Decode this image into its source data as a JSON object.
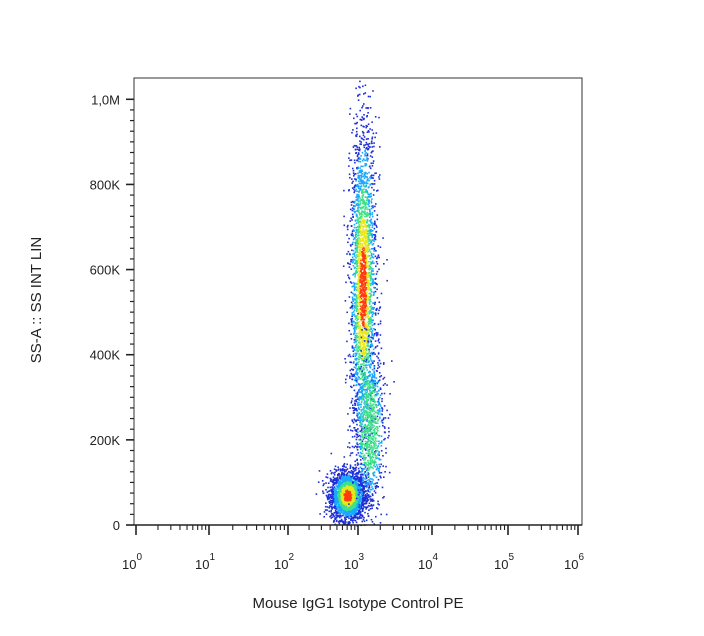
{
  "chart_data": {
    "type": "scatter",
    "subtype": "flow-cytometry density dot plot (pseudocolor)",
    "xlabel": "Mouse IgG1 Isotype Control PE",
    "ylabel": "SS-A :: SS INT LIN",
    "x_scale": "log (biexponential near zero)",
    "y_scale": "linear",
    "x_ticks": [
      {
        "base": "10",
        "exp": "0",
        "value": 1
      },
      {
        "base": "10",
        "exp": "1",
        "value": 10
      },
      {
        "base": "10",
        "exp": "2",
        "value": 100
      },
      {
        "base": "10",
        "exp": "3",
        "value": 1000
      },
      {
        "base": "10",
        "exp": "4",
        "value": 10000
      },
      {
        "base": "10",
        "exp": "5",
        "value": 100000
      },
      {
        "base": "10",
        "exp": "6",
        "value": 1000000
      }
    ],
    "y_ticks": [
      {
        "label": "0",
        "value": 0
      },
      {
        "label": "200K",
        "value": 200000
      },
      {
        "label": "400K",
        "value": 400000
      },
      {
        "label": "600K",
        "value": 600000
      },
      {
        "label": "800K",
        "value": 800000
      },
      {
        "label": "1,0M",
        "value": 1000000
      }
    ],
    "ylim": [
      0,
      1050000
    ],
    "grid": false,
    "legend": "none",
    "populations": [
      {
        "x_center": 700,
        "y_center": 70000,
        "x_spread_decades": 0.12,
        "y_spread": 28000,
        "density": "high"
      },
      {
        "x_center": 1150,
        "y_center": 560000,
        "x_spread_decades": 0.09,
        "y_spread": 190000,
        "density": "high"
      },
      {
        "x_center": 1400,
        "y_center": 230000,
        "x_spread_decades": 0.1,
        "y_spread": 90000,
        "density": "medium"
      }
    ],
    "colors": {
      "low": "#1f2fd6",
      "mid_low": "#18a8ff",
      "mid": "#3fe08a",
      "mid_high": "#e8e81a",
      "high": "#ff3a10",
      "axis": "#1a1a1a"
    }
  }
}
